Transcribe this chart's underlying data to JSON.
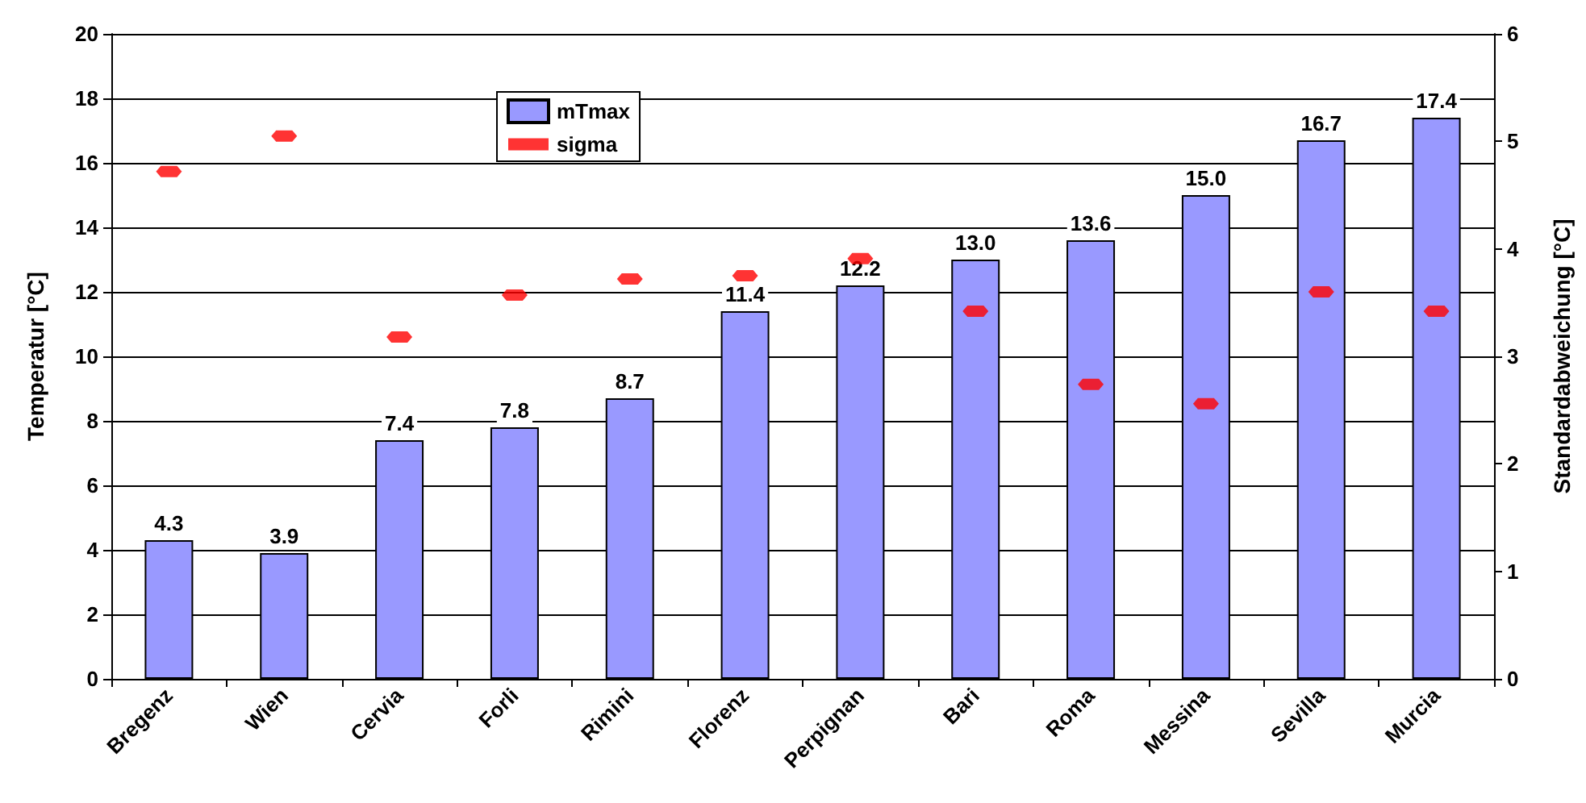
{
  "chart_data": {
    "type": "bar",
    "ylabel": "Temperatur [°C]",
    "y2label": "Standardabweichung [°C]",
    "categories": [
      "Bregenz",
      "Wien",
      "Cervia",
      "Forli",
      "Rimini",
      "Florenz",
      "Perpignan",
      "Bari",
      "Roma",
      "Messina",
      "Sevilla",
      "Murcia"
    ],
    "series": [
      {
        "name": "mTmax",
        "color": "#9999ff",
        "values": [
          4.3,
          3.9,
          7.4,
          7.8,
          8.7,
          11.4,
          12.2,
          13.0,
          13.6,
          15.0,
          16.7,
          17.4
        ],
        "value_labels": [
          "4.3",
          "3.9",
          "7.4",
          "7.8",
          "8.7",
          "11.4",
          "12.2",
          "13.0",
          "13.6",
          "15.0",
          "16.7",
          "17.4"
        ]
      },
      {
        "name": "sigma",
        "type": "scatter",
        "axis": "y2",
        "color": "#ff0000",
        "x": [
          "Bregenz",
          "Wien",
          "Cervia",
          "Forli",
          "Rimini",
          "Florenz",
          "Perpignan",
          "Bari",
          "Roma",
          "Messina",
          "Sevilla",
          "Murcia"
        ],
        "values": [
          4.72,
          5.05,
          3.18,
          3.57,
          3.72,
          3.75,
          3.91,
          3.42,
          2.74,
          2.56,
          3.6,
          3.42
        ]
      }
    ],
    "ylim": [
      0,
      20
    ],
    "yticks": [
      0,
      2,
      4,
      6,
      8,
      10,
      12,
      14,
      16,
      18,
      20
    ],
    "y2lim": [
      0,
      6
    ],
    "y2ticks": [
      0,
      1,
      2,
      3,
      4,
      5,
      6
    ],
    "grid": "y",
    "legend": "top"
  }
}
